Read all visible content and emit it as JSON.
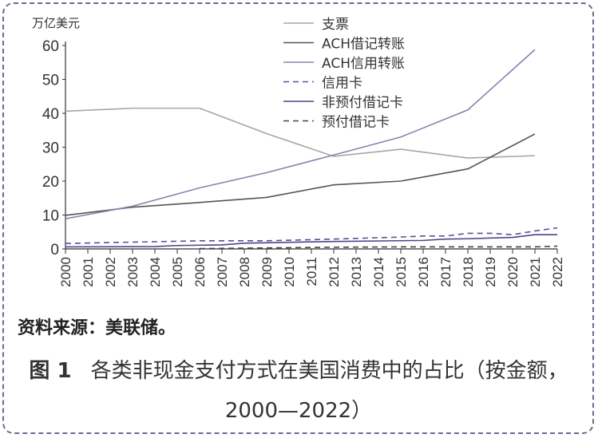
{
  "chart_data": {
    "type": "line",
    "ylabel": "万亿美元",
    "ylim": [
      0,
      60
    ],
    "yticks": [
      0,
      10,
      20,
      30,
      40,
      50,
      60
    ],
    "xlim": [
      2000,
      2022
    ],
    "xticks": [
      "2000",
      "2001",
      "2002",
      "2003",
      "2004",
      "2005",
      "2006",
      "2007",
      "2008",
      "2009",
      "2010",
      "2011",
      "2012",
      "2013",
      "2014",
      "2015",
      "2016",
      "2017",
      "2018",
      "2019",
      "2020",
      "2021",
      "2022"
    ],
    "legend": "top-right",
    "series": [
      {
        "name": "支票",
        "color": "#a6a6a6",
        "dash": false,
        "x": [
          2000,
          2003,
          2006,
          2009,
          2012,
          2015,
          2018,
          2021
        ],
        "y": [
          40.6,
          41.5,
          41.5,
          34,
          27.3,
          29.4,
          26.8,
          27.5
        ]
      },
      {
        "name": "ACH借记转账",
        "color": "#555555",
        "dash": false,
        "x": [
          2000,
          2003,
          2006,
          2009,
          2012,
          2015,
          2018,
          2021
        ],
        "y": [
          9.9,
          12.3,
          13.7,
          15.2,
          18.9,
          20,
          23.6,
          33.9
        ]
      },
      {
        "name": "ACH信用转账",
        "color": "#8a82b0",
        "dash": false,
        "x": [
          2000,
          2003,
          2006,
          2009,
          2012,
          2015,
          2018,
          2021
        ],
        "y": [
          8.9,
          12.6,
          18,
          22.5,
          27.7,
          33,
          41,
          58.8
        ]
      },
      {
        "name": "信用卡",
        "color": "#5b4f96",
        "dash": true,
        "x": [
          2000,
          2003,
          2006,
          2009,
          2012,
          2015,
          2016,
          2017,
          2018,
          2019,
          2020,
          2021,
          2022
        ],
        "y": [
          1.6,
          2.0,
          2.4,
          2.4,
          2.9,
          3.5,
          3.8,
          3.8,
          4.6,
          4.6,
          4.2,
          5.3,
          6.2
        ]
      },
      {
        "name": "非预付借记卡",
        "color": "#4e4488",
        "dash": false,
        "x": [
          2000,
          2004,
          2005,
          2007,
          2008,
          2012,
          2016,
          2017,
          2018,
          2020,
          2021,
          2022
        ],
        "y": [
          0.6,
          0.7,
          1.0,
          1.2,
          1.7,
          2.2,
          2.5,
          2.9,
          3.0,
          3.4,
          4.2,
          4.2
        ]
      },
      {
        "name": "预付借记卡",
        "color": "#444444",
        "dash": true,
        "x": [
          2006,
          2009,
          2012,
          2015,
          2018,
          2021,
          2022
        ],
        "y": [
          0.1,
          0.3,
          0.5,
          0.6,
          0.6,
          0.6,
          0.8
        ]
      }
    ]
  },
  "source": "资料来源：美联储。",
  "caption": {
    "label": "图 1",
    "text": "各类非现金支付方式在美国消费中的占比（按金额，2000—2022）"
  }
}
